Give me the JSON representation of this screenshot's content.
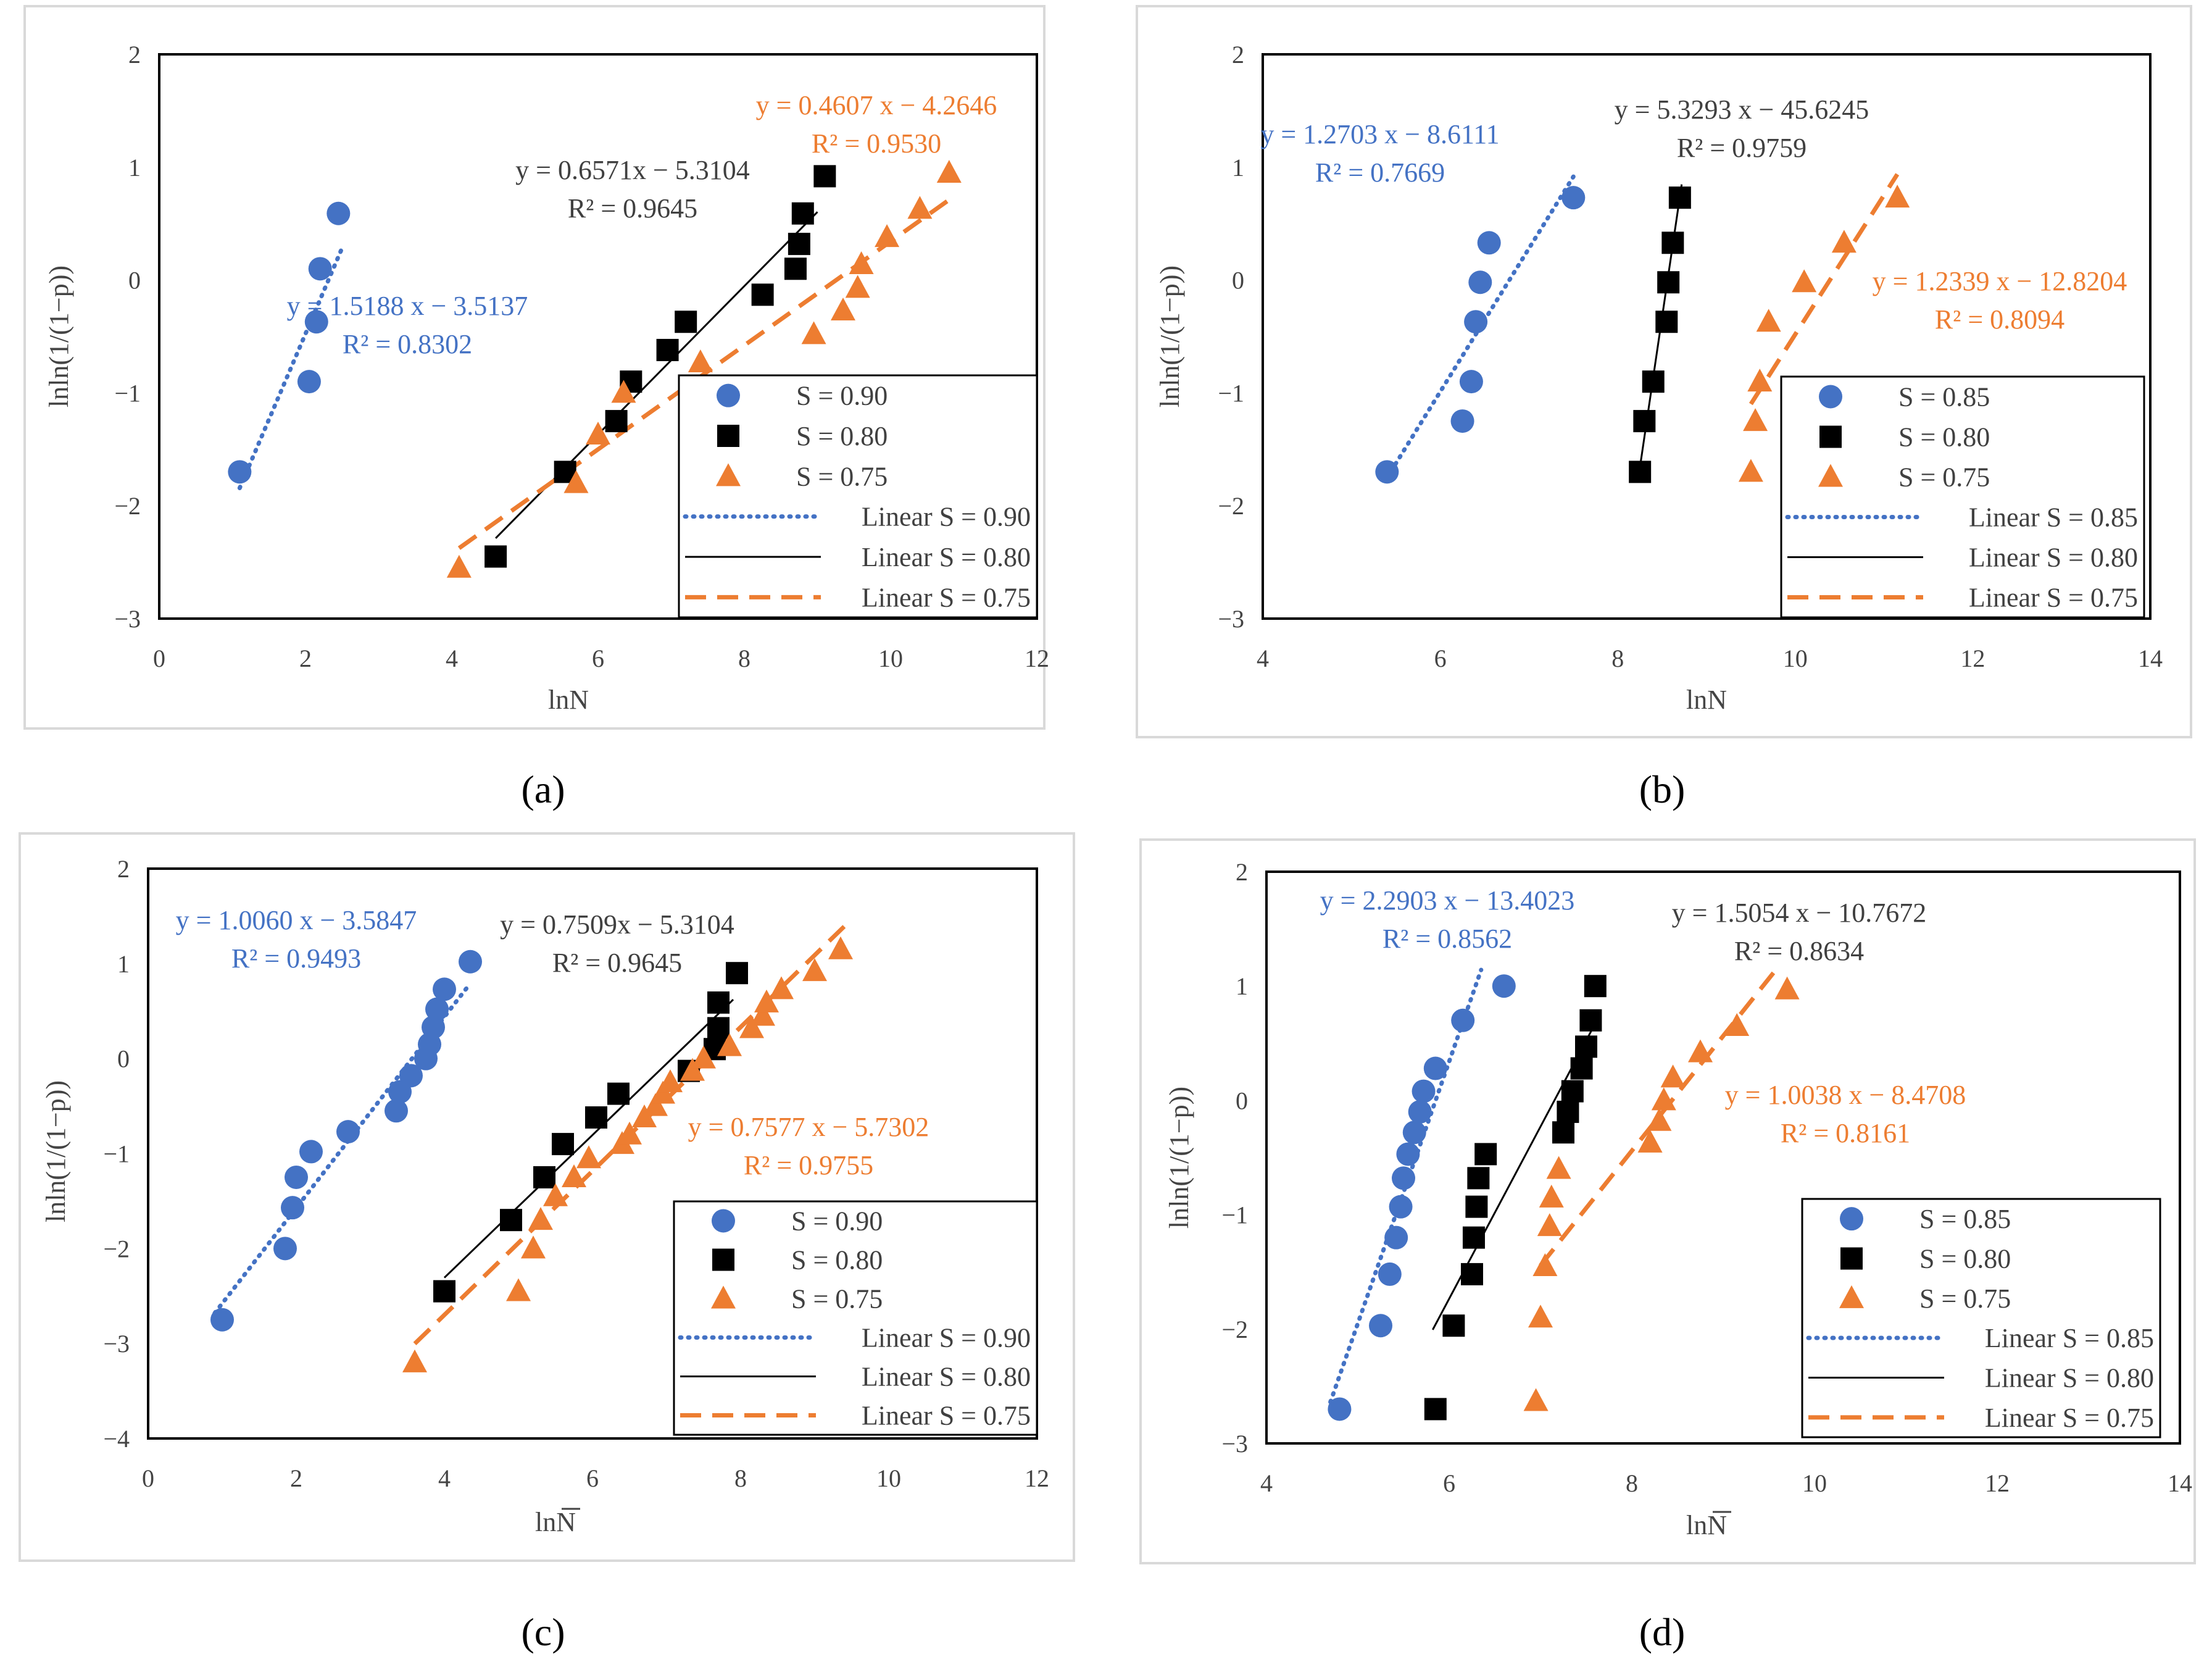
{
  "figure": {
    "colors": {
      "s_high": "#4472C4",
      "s_mid": "#000000",
      "s_low": "#ED7D31",
      "frame": "#D9D9D9",
      "eq_grey": "#404040"
    }
  },
  "chart_data": [
    {
      "type": "scatter",
      "caption": "(a)",
      "xlabel": "lnN",
      "xlabel_overline": false,
      "ylabel": "lnln(1/(1−p))",
      "xlim": [
        0,
        12
      ],
      "ylim": [
        -3,
        2
      ],
      "xticks": [
        "0",
        "2",
        "4",
        "6",
        "8",
        "10",
        "12"
      ],
      "yticks": [
        "2",
        "1",
        "0",
        "−1",
        "−2",
        "−3"
      ],
      "legend_position": "bottom-right",
      "series": [
        {
          "name": "S = 0.90",
          "marker": "circle",
          "color": "#4472C4",
          "x": [
            1.1,
            2.05,
            2.15,
            2.2,
            2.45
          ],
          "y": [
            -1.7,
            -0.9,
            -0.37,
            0.1,
            0.59
          ],
          "fit": {
            "name": "Linear S = 0.90",
            "style": "dotted",
            "slope": 1.5188,
            "intercept": -3.5137,
            "x_range": [
              1.1,
              2.5
            ],
            "equation": "y = 1.5188 x − 3.5137",
            "r2": "R² = 0.8302"
          }
        },
        {
          "name": "S = 0.80",
          "marker": "square",
          "color": "#000000",
          "x": [
            4.6,
            5.55,
            6.25,
            6.45,
            6.95,
            7.2,
            8.25,
            8.7,
            8.75,
            8.8,
            9.1
          ],
          "y": [
            -2.45,
            -1.7,
            -1.25,
            -0.9,
            -0.62,
            -0.37,
            -0.13,
            0.1,
            0.32,
            0.59,
            0.92
          ],
          "fit": {
            "name": "Linear S = 0.80",
            "style": "solid",
            "slope": 0.6571,
            "intercept": -5.3104,
            "x_range": [
              4.6,
              9.0
            ],
            "equation": "y = 0.6571x − 5.3104",
            "r2": "R² = 0.9645"
          }
        },
        {
          "name": "S = 0.75",
          "marker": "triangle",
          "color": "#ED7D31",
          "x": [
            4.1,
            5.7,
            6.0,
            6.35,
            7.4,
            8.95,
            9.35,
            9.55,
            9.6,
            9.95,
            10.4,
            10.8
          ],
          "y": [
            -2.55,
            -1.8,
            -1.37,
            -1.0,
            -0.73,
            -0.48,
            -0.27,
            -0.07,
            0.14,
            0.38,
            0.63,
            0.95
          ],
          "fit": {
            "name": "Linear S = 0.75",
            "style": "dashed",
            "slope": 0.4607,
            "intercept": -4.2646,
            "x_range": [
              4.1,
              10.8
            ],
            "equation": "y = 0.4607 x − 4.2646",
            "r2": "R² = 0.9530"
          }
        }
      ]
    },
    {
      "type": "scatter",
      "caption": "(b)",
      "xlabel": "lnN",
      "xlabel_overline": false,
      "ylabel": "lnln(1/(1−p))",
      "xlim": [
        4,
        14
      ],
      "ylim": [
        -3,
        2
      ],
      "xticks": [
        "4",
        "6",
        "8",
        "10",
        "12",
        "14"
      ],
      "yticks": [
        "2",
        "1",
        "0",
        "−1",
        "−2",
        "−3"
      ],
      "legend_position": "bottom-right",
      "series": [
        {
          "name": "S = 0.85",
          "marker": "circle",
          "color": "#4472C4",
          "x": [
            5.4,
            6.25,
            6.35,
            6.4,
            6.45,
            6.55,
            7.5
          ],
          "y": [
            -1.7,
            -1.25,
            -0.9,
            -0.37,
            -0.02,
            0.33,
            0.73
          ],
          "fit": {
            "name": "Linear S = 0.85",
            "style": "dotted",
            "slope": 1.2703,
            "intercept": -8.6111,
            "x_range": [
              5.4,
              7.5
            ],
            "equation": "y = 1.2703 x − 8.6111",
            "r2": "R² = 0.7669"
          }
        },
        {
          "name": "S = 0.80",
          "marker": "square",
          "color": "#000000",
          "x": [
            8.25,
            8.3,
            8.4,
            8.55,
            8.57,
            8.62,
            8.7
          ],
          "y": [
            -1.7,
            -1.25,
            -0.9,
            -0.37,
            -0.02,
            0.33,
            0.73
          ],
          "fit": {
            "name": "Linear S = 0.80",
            "style": "solid",
            "slope": 5.3293,
            "intercept": -45.6245,
            "x_range": [
              8.25,
              8.72
            ],
            "equation": "y = 5.3293 x − 45.6245",
            "r2": "R² = 0.9759"
          }
        },
        {
          "name": "S = 0.75",
          "marker": "triangle",
          "color": "#ED7D31",
          "x": [
            9.5,
            9.55,
            9.6,
            9.7,
            10.1,
            10.55,
            11.15
          ],
          "y": [
            -1.7,
            -1.25,
            -0.9,
            -0.37,
            -0.02,
            0.33,
            0.73
          ],
          "fit": {
            "name": "Linear S = 0.75",
            "style": "dashed",
            "slope": 1.2339,
            "intercept": -12.8204,
            "x_range": [
              9.5,
              11.15
            ],
            "equation": "y = 1.2339 x − 12.8204",
            "r2": "R² = 0.8094"
          }
        }
      ]
    },
    {
      "type": "scatter",
      "caption": "(c)",
      "xlabel": "lnN",
      "xlabel_overline": true,
      "ylabel": "lnln(1/(1−p))",
      "xlim": [
        0,
        12
      ],
      "ylim": [
        -4,
        2
      ],
      "xticks": [
        "0",
        "2",
        "4",
        "6",
        "8",
        "10",
        "12"
      ],
      "yticks": [
        "2",
        "1",
        "0",
        "−1",
        "−2",
        "−3",
        "−4"
      ],
      "legend_position": "bottom-right",
      "series": [
        {
          "name": "S = 0.90",
          "marker": "circle",
          "color": "#4472C4",
          "x": [
            1.0,
            1.85,
            1.95,
            2.0,
            2.2,
            2.7,
            3.35,
            3.4,
            3.55,
            3.75,
            3.8,
            3.85,
            3.9,
            4.0,
            4.35
          ],
          "y": [
            -2.75,
            -2.0,
            -1.57,
            -1.25,
            -0.98,
            -0.77,
            -0.55,
            -0.35,
            -0.18,
            0.0,
            0.15,
            0.33,
            0.52,
            0.73,
            1.02
          ],
          "fit": {
            "name": "Linear S = 0.90",
            "style": "dotted",
            "slope": 1.006,
            "intercept": -3.5847,
            "x_range": [
              0.9,
              4.3
            ],
            "equation": "y = 1.0060 x − 3.5847",
            "r2": "R² = 0.9493"
          }
        },
        {
          "name": "S = 0.80",
          "marker": "square",
          "color": "#000000",
          "x": [
            4.0,
            4.9,
            5.35,
            5.6,
            6.05,
            6.35,
            7.3,
            7.65,
            7.7,
            7.7,
            7.95
          ],
          "y": [
            -2.45,
            -1.7,
            -1.25,
            -0.9,
            -0.62,
            -0.37,
            -0.13,
            0.1,
            0.32,
            0.59,
            0.9
          ],
          "fit": {
            "name": "Linear S = 0.80",
            "style": "solid",
            "slope": 0.7509,
            "intercept": -5.3104,
            "x_range": [
              4.0,
              7.9
            ],
            "equation": "y = 0.7509x − 5.3104",
            "r2": "R² = 0.9645"
          }
        },
        {
          "name": "S = 0.75",
          "marker": "triangle",
          "color": "#ED7D31",
          "x": [
            3.6,
            5.0,
            5.2,
            5.3,
            5.5,
            5.75,
            5.95,
            6.4,
            6.5,
            6.7,
            6.85,
            6.95,
            7.05,
            7.35,
            7.5,
            7.85,
            8.15,
            8.3,
            8.35,
            8.55,
            9.0,
            9.35
          ],
          "y": [
            -3.2,
            -2.45,
            -2.0,
            -1.7,
            -1.45,
            -1.25,
            -1.05,
            -0.9,
            -0.8,
            -0.62,
            -0.5,
            -0.37,
            -0.25,
            -0.13,
            0.0,
            0.13,
            0.32,
            0.45,
            0.59,
            0.73,
            0.92,
            1.15
          ],
          "fit": {
            "name": "Linear S = 0.75",
            "style": "dashed",
            "slope": 0.7577,
            "intercept": -5.7302,
            "x_range": [
              3.6,
              9.45
            ],
            "equation": "y = 0.7577 x − 5.7302",
            "r2": "R² = 0.9755"
          }
        }
      ]
    },
    {
      "type": "scatter",
      "caption": "(d)",
      "xlabel": "lnN",
      "xlabel_overline": true,
      "ylabel": "lnln(1/(1−p))",
      "xlim": [
        4,
        14
      ],
      "ylim": [
        -3,
        2
      ],
      "xticks": [
        "4",
        "6",
        "8",
        "10",
        "12",
        "14"
      ],
      "yticks": [
        "2",
        "1",
        "0",
        "−1",
        "−2",
        "−3"
      ],
      "legend_position": "bottom-right",
      "series": [
        {
          "name": "S = 0.85",
          "marker": "circle",
          "color": "#4472C4",
          "x": [
            4.8,
            5.25,
            5.35,
            5.42,
            5.47,
            5.5,
            5.55,
            5.62,
            5.68,
            5.72,
            5.85,
            6.15,
            6.6
          ],
          "y": [
            -2.7,
            -1.97,
            -1.52,
            -1.2,
            -0.93,
            -0.68,
            -0.47,
            -0.28,
            -0.1,
            0.08,
            0.28,
            0.7,
            1.0
          ],
          "fit": {
            "name": "Linear S = 0.85",
            "style": "dotted",
            "slope": 2.2903,
            "intercept": -13.4023,
            "x_range": [
              4.7,
              6.35
            ],
            "equation": "y = 2.2903 x − 13.4023",
            "r2": "R² = 0.8562"
          }
        },
        {
          "name": "S = 0.80",
          "marker": "square",
          "color": "#000000",
          "x": [
            5.85,
            6.05,
            6.25,
            6.27,
            6.3,
            6.32,
            6.4,
            7.25,
            7.3,
            7.35,
            7.45,
            7.5,
            7.55,
            7.6
          ],
          "y": [
            -2.7,
            -1.97,
            -1.52,
            -1.2,
            -0.93,
            -0.68,
            -0.47,
            -0.28,
            -0.1,
            0.08,
            0.28,
            0.47,
            0.7,
            1.0
          ],
          "fit": {
            "name": "Linear S = 0.80",
            "style": "solid",
            "slope": 1.5054,
            "intercept": -10.7672,
            "x_range": [
              5.82,
              7.57
            ],
            "equation": "y = 1.5054 x − 10.7672",
            "r2": "R² = 0.8634"
          }
        },
        {
          "name": "S = 0.75",
          "marker": "triangle",
          "color": "#ED7D31",
          "x": [
            6.95,
            7.0,
            7.05,
            7.1,
            7.12,
            7.2,
            8.2,
            8.3,
            8.35,
            8.45,
            8.75,
            9.15,
            9.7
          ],
          "y": [
            -2.63,
            -1.9,
            -1.45,
            -1.1,
            -0.85,
            -0.6,
            -0.37,
            -0.18,
            0.0,
            0.2,
            0.42,
            0.65,
            0.97
          ],
          "fit": {
            "name": "Linear S = 0.75",
            "style": "dashed",
            "slope": 1.0038,
            "intercept": -8.4708,
            "x_range": [
              7.0,
              9.6
            ],
            "equation": "y = 1.0038 x − 8.4708",
            "r2": "R² = 0.8161"
          }
        }
      ]
    }
  ]
}
